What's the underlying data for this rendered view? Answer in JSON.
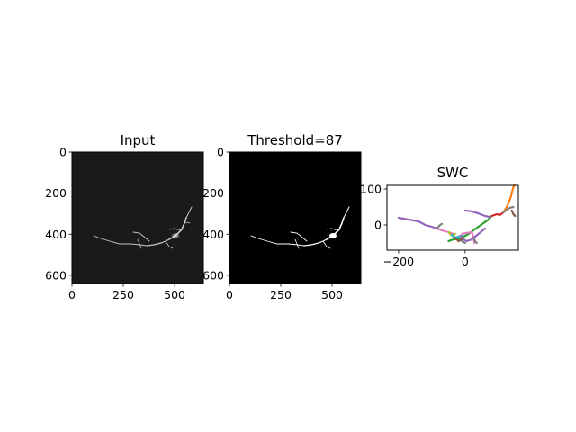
{
  "chart_data": [
    {
      "type": "image",
      "title": "Input",
      "xlim": [
        0,
        640
      ],
      "ylim": [
        640,
        0
      ],
      "x_ticks": [
        0,
        250,
        500
      ],
      "y_ticks": [
        0,
        200,
        400,
        600
      ],
      "x_tick_labels": [
        "0",
        "250",
        "500"
      ],
      "y_tick_labels": [
        "0",
        "200",
        "400",
        "600"
      ],
      "background": "#1a1a1a"
    },
    {
      "type": "image",
      "title": "Threshold=87",
      "xlim": [
        0,
        640
      ],
      "ylim": [
        640,
        0
      ],
      "x_ticks": [
        0,
        250,
        500
      ],
      "y_ticks": [
        0,
        200,
        400,
        600
      ],
      "x_tick_labels": [
        "0",
        "250",
        "500"
      ],
      "y_tick_labels": [
        "0",
        "200",
        "400",
        "600"
      ],
      "background": "#000000"
    },
    {
      "type": "line",
      "title": "SWC",
      "xlim": [
        -235,
        160
      ],
      "ylim": [
        -70,
        110
      ],
      "x_ticks": [
        -200,
        0
      ],
      "y_ticks": [
        0,
        100
      ],
      "x_tick_labels": [
        "−200",
        "0"
      ],
      "y_tick_labels": [
        "0",
        "100"
      ],
      "grid": false,
      "series": [
        {
          "color": "#9467bd",
          "x": [
            -200,
            -170,
            -140,
            -120,
            -100,
            -85
          ],
          "y": [
            20,
            15,
            10,
            0,
            -5,
            -10
          ]
        },
        {
          "color": "#e377c2",
          "x": [
            -85,
            -70,
            -50,
            -35
          ],
          "y": [
            -10,
            -15,
            -20,
            -25
          ]
        },
        {
          "color": "#7f7f7f",
          "x": [
            -85,
            -80,
            -75,
            -70
          ],
          "y": [
            -10,
            -5,
            0,
            3
          ]
        },
        {
          "color": "#bcbd22",
          "x": [
            -50,
            -40,
            -30
          ],
          "y": [
            -20,
            -30,
            -25
          ]
        },
        {
          "color": "#17becf",
          "x": [
            -40,
            -30,
            -10
          ],
          "y": [
            -28,
            -35,
            -30
          ]
        },
        {
          "color": "#2ca02c",
          "x": [
            -50,
            -35,
            -15,
            10,
            25,
            40,
            55,
            70,
            80
          ],
          "y": [
            -45,
            -40,
            -38,
            -25,
            -15,
            -5,
            5,
            15,
            25
          ]
        },
        {
          "color": "#9467bd",
          "x": [
            -15,
            -5,
            5,
            20,
            40,
            60
          ],
          "y": [
            -30,
            -40,
            -45,
            -40,
            -25,
            -10
          ]
        },
        {
          "color": "#8c564b",
          "x": [
            -30,
            -20,
            -10
          ],
          "y": [
            -35,
            -45,
            -40
          ]
        },
        {
          "color": "#7f7f7f",
          "x": [
            -10,
            0
          ],
          "y": [
            -45,
            -50
          ]
        },
        {
          "color": "#e377c2",
          "x": [
            -10,
            5,
            20,
            25,
            28
          ],
          "y": [
            -25,
            -22,
            -20,
            -35,
            -50
          ]
        },
        {
          "color": "#7f7f7f",
          "x": [
            25,
            30,
            35
          ],
          "y": [
            -35,
            -45,
            -50
          ]
        },
        {
          "color": "#d62728",
          "x": [
            80,
            95,
            105,
            115
          ],
          "y": [
            25,
            30,
            28,
            35
          ]
        },
        {
          "color": "#9467bd",
          "x": [
            0,
            20,
            40,
            60,
            75
          ],
          "y": [
            40,
            38,
            32,
            25,
            22
          ]
        },
        {
          "color": "#ff7f0e",
          "x": [
            115,
            125,
            132,
            138,
            142,
            145,
            148
          ],
          "y": [
            35,
            50,
            65,
            80,
            95,
            105,
            110
          ]
        },
        {
          "color": "#7f7f7f",
          "x": [
            115,
            125,
            135,
            145
          ],
          "y": [
            35,
            42,
            48,
            50
          ]
        },
        {
          "color": "#8c564b",
          "x": [
            140,
            145,
            150
          ],
          "y": [
            40,
            30,
            25
          ]
        }
      ]
    }
  ]
}
